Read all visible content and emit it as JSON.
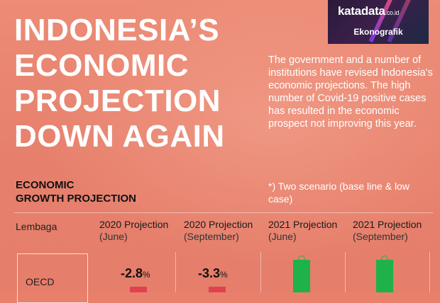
{
  "brand": {
    "name": "katadata",
    "domain": ".co.id",
    "section": "Ekonografik"
  },
  "headline": [
    "INDONESIA’S",
    "ECONOMIC",
    "PROJECTION",
    "DOWN AGAIN"
  ],
  "description": "The government and a number of institutions have revised Indonesia’s economic projections. The high number of Covid-19 positive cases has resulted in the economic prospect not improving this year.",
  "chart_data": {
    "type": "table",
    "title": [
      "ECONOMIC",
      "GROWTH PROJECTION"
    ],
    "note": "*) Two scenario (base line & low case)",
    "row_header": "Lembaga",
    "columns": [
      {
        "label": "2020 Projection",
        "sub": "(June)"
      },
      {
        "label": "2020 Projection",
        "sub": "(September)"
      },
      {
        "label": "2021 Projection",
        "sub": "(June)"
      },
      {
        "label": "2021 Projection",
        "sub": "(September)"
      }
    ],
    "rows": [
      {
        "institution": "OECD",
        "values": [
          -2.8,
          -3.3,
          null,
          null
        ],
        "value_labels": [
          "-2.8",
          "-3.3",
          "",
          ""
        ],
        "unit": "%"
      }
    ],
    "colors": {
      "negative": "#e0414e",
      "positive": "#1fb24b"
    }
  }
}
